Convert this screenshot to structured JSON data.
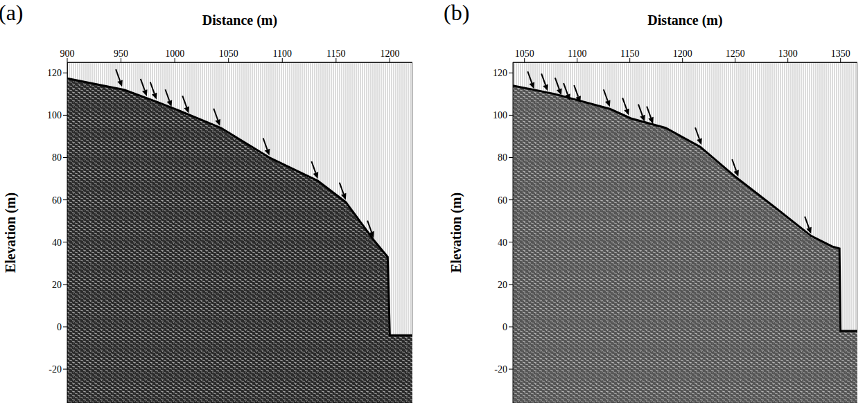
{
  "chart_data": [
    {
      "type": "area",
      "title": "(a)",
      "x_label": "Distance (m)",
      "y_label": "Elevation (m)",
      "x": [
        900,
        953,
        985,
        1005,
        1043,
        1088,
        1133,
        1159,
        1185,
        1198,
        1200,
        1221
      ],
      "values": [
        117.4,
        112,
        106,
        102,
        94,
        80,
        69,
        59,
        41,
        33,
        -4,
        -4
      ],
      "xlim": [
        900,
        1221
      ],
      "xticks": [
        900,
        950,
        1000,
        1050,
        1100,
        1150,
        1200
      ],
      "ylim": [
        -36,
        125
      ],
      "yticks": [
        -20,
        0,
        20,
        40,
        60,
        80,
        100,
        120
      ],
      "arrows": {
        "x": [
          951,
          974,
          983,
          997,
          1013,
          1042,
          1088,
          1133,
          1159,
          1185
        ],
        "values": [
          112.5,
          108,
          106.5,
          103,
          100,
          94,
          80,
          69,
          59,
          41
        ]
      }
    },
    {
      "type": "area",
      "title": "(b)",
      "x_label": "Distance (m)",
      "y_label": "Elevation (m)",
      "x": [
        1039,
        1079,
        1131,
        1151,
        1184,
        1217,
        1250,
        1289,
        1322,
        1342,
        1349,
        1350,
        1366
      ],
      "values": [
        114,
        110,
        103,
        98.5,
        94,
        85,
        71,
        56,
        43,
        38,
        37,
        -2,
        -2
      ],
      "xlim": [
        1039,
        1366
      ],
      "xticks": [
        1050,
        1100,
        1150,
        1200,
        1250,
        1300,
        1350
      ],
      "ylim": [
        -36,
        125
      ],
      "yticks": [
        -20,
        0,
        20,
        40,
        60,
        80,
        100,
        120
      ],
      "arrows": {
        "x": [
          1059,
          1072,
          1085,
          1093,
          1103,
          1131,
          1149,
          1164,
          1172,
          1218,
          1253,
          1322
        ],
        "values": [
          111.5,
          110.5,
          108.5,
          106,
          105,
          103,
          99,
          96,
          95,
          85,
          70,
          43
        ]
      }
    }
  ]
}
